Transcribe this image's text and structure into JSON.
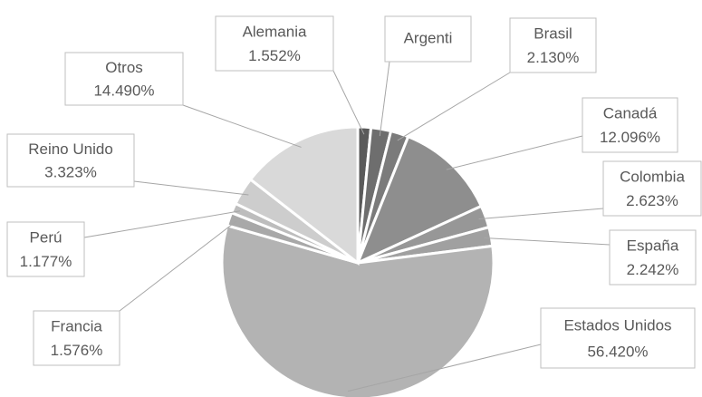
{
  "chart_data": {
    "type": "pie",
    "categories": [
      "Alemania",
      "Argenti",
      "Brasil",
      "Canadá",
      "Colombia",
      "España",
      "Estados Unidos",
      "Francia",
      "Perú",
      "Reino Unido",
      "Otros"
    ],
    "values": [
      1.552,
      2.371,
      2.13,
      12.096,
      2.623,
      2.242,
      56.42,
      1.576,
      1.177,
      3.323,
      14.49
    ],
    "value_labels": [
      "1.552%",
      null,
      "2.130%",
      "12.096%",
      "2.623%",
      "2.242%",
      "56.420%",
      "1.576%",
      "1.177%",
      "3.323%",
      "14.490%"
    ],
    "colors": [
      "#5a5a5a",
      "#6e6e6e",
      "#7b7b7b",
      "#8e8e8e",
      "#979797",
      "#a0a0a0",
      "#b3b3b3",
      "#a8a8a8",
      "#bdbdbd",
      "#cdcdcd",
      "#d9d9d9"
    ]
  }
}
